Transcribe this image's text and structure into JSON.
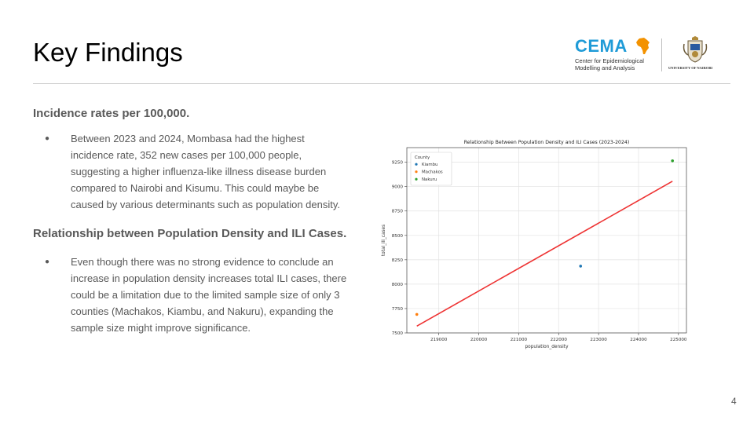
{
  "slide": {
    "title": "Key Findings",
    "page_number": "4"
  },
  "logos": {
    "cema_name": "CEMA",
    "cema_subtitle_line1": "Center for Epidemiological",
    "cema_subtitle_line2": "Modelling and Analysis",
    "university_name": "UNIVERSITY OF NAIROBI",
    "colors": {
      "cema_blue": "#1f9bd7",
      "africa_orange": "#f39200"
    }
  },
  "sections": [
    {
      "heading": "Incidence rates per 100,000.",
      "bullet": "Between 2023 and 2024, Mombasa had the highest incidence rate, 352 new cases per 100,000 people, suggesting a higher influenza-like illness disease burden compared to Nairobi and Kisumu. This could maybe be caused by various determinants such as population density."
    },
    {
      "heading": "Relationship between Population Density and ILI Cases.",
      "bullet": "Even though there was no strong evidence to conclude an increase in population density increases total ILI cases, there could be a limitation due to the limited sample size of only 3 counties (Machakos, Kiambu, and Nakuru), expanding the sample size might improve significance."
    }
  ],
  "chart_data": {
    "type": "scatter",
    "title": "Relationship Between Population Density and ILI Cases (2023-2024)",
    "xlabel": "population_density",
    "ylabel": "total_ili_cases",
    "xlim": [
      218200,
      225200
    ],
    "ylim": [
      7500,
      9400
    ],
    "xticks": [
      219000,
      220000,
      221000,
      222000,
      223000,
      224000,
      225000
    ],
    "yticks": [
      7500,
      7750,
      8000,
      8250,
      8500,
      8750,
      9000,
      9250
    ],
    "grid": true,
    "legend_title": "County",
    "legend_placement": "top-left",
    "series": [
      {
        "name": "Kiambu",
        "color": "#1f77b4",
        "points": [
          {
            "x": 222550,
            "y": 8185
          }
        ]
      },
      {
        "name": "Machakos",
        "color": "#ff7f0e",
        "points": [
          {
            "x": 218450,
            "y": 7690
          }
        ]
      },
      {
        "name": "Nakuru",
        "color": "#2ca02c",
        "points": [
          {
            "x": 224850,
            "y": 9265
          }
        ]
      }
    ],
    "regression_line": {
      "color": "#ee3333",
      "points": [
        {
          "x": 218450,
          "y": 7570
        },
        {
          "x": 224850,
          "y": 9055
        }
      ]
    }
  }
}
